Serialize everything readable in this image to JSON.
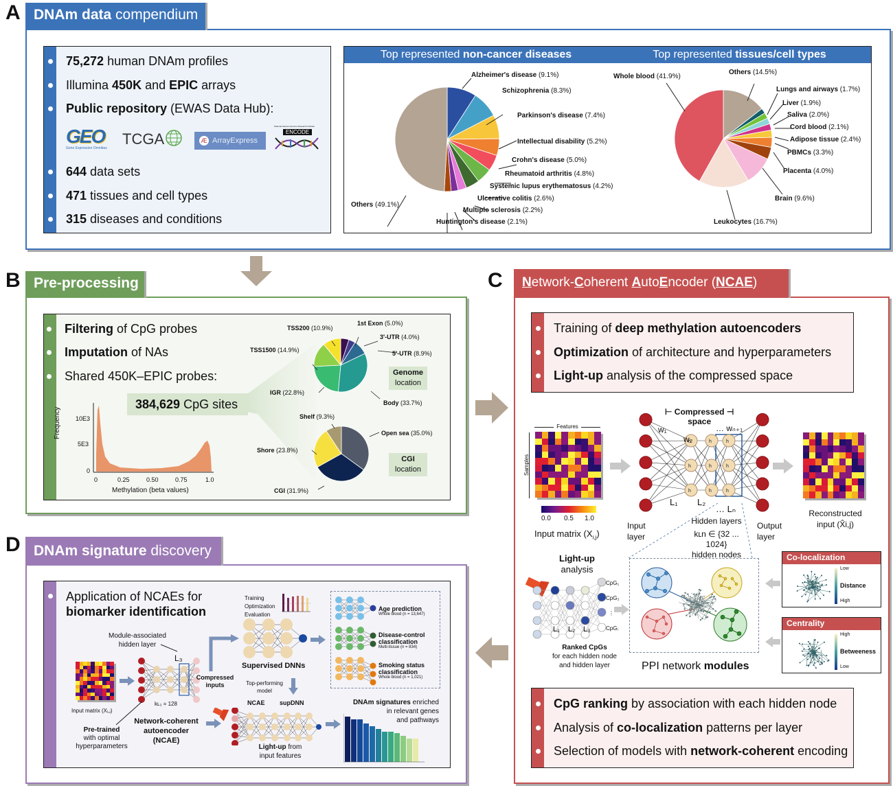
{
  "panels": {
    "A": {
      "letter": "A",
      "title_bold": "DNAm data",
      "title_rest": " compendium",
      "color": "#3b73b9",
      "bullets": [
        {
          "bold": "75,272",
          "rest": " human DNAm profiles"
        },
        {
          "pre": "Illumina ",
          "bold": "450K",
          "mid": " and ",
          "bold2": "EPIC",
          "rest": " arrays"
        },
        {
          "bold": "Public repository",
          "rest": " (EWAS Data Hub):"
        },
        {
          "bold": "644",
          "rest": " data sets"
        },
        {
          "bold": "471",
          "rest": " tissues and cell types"
        },
        {
          "bold": "315",
          "rest": " diseases and conditions"
        }
      ],
      "logos": {
        "geo": "GEO",
        "geo_sub": "Gene Expression Omnibus",
        "tcga": "TCGA",
        "arrayexpress": "ArrayExpress",
        "encode": "ENCODE",
        "encode_sub": "National Human Genome Research Institute"
      }
    },
    "B": {
      "letter": "B",
      "title": "Pre-processing",
      "color": "#6e9e5a",
      "bullets": [
        {
          "bold": "Filtering",
          "rest": " of CpG probes"
        },
        {
          "bold": "Imputation",
          "rest": " of NAs"
        },
        {
          "bold": "",
          "rest": "Shared 450K–EPIC probes:"
        }
      ],
      "cpg_count_bold": "384,629",
      "cpg_count_rest": " CpG sites",
      "genome_box": [
        "Genome",
        "location"
      ],
      "cgi_box": [
        "CGI",
        "location"
      ]
    },
    "C": {
      "letter": "C",
      "title_parts": [
        "N",
        "etwork-",
        "C",
        "oherent ",
        "A",
        "uto",
        "E",
        "ncoder (",
        "NCAE",
        ")"
      ],
      "color": "#c65050",
      "top_bullets": [
        {
          "pre": "Training of ",
          "bold": "deep methylation autoencoders",
          "rest": ""
        },
        {
          "pre": "",
          "bold": "Optimization",
          "rest": " of architecture and hyperparameters"
        },
        {
          "pre": "",
          "bold": "Light-up",
          "rest": " analysis of the compressed space"
        }
      ],
      "bottom_bullets": [
        {
          "pre": "",
          "bold": "CpG ranking",
          "rest": " by association with each hidden node"
        },
        {
          "pre": "Analysis of ",
          "bold": "co-localization",
          "rest": " patterns per layer"
        },
        {
          "pre": "Selection of models with ",
          "bold": "network-coherent",
          "rest": " encoding"
        }
      ],
      "autoencoder": {
        "features_label": "Features",
        "samples_label": "Samples",
        "colorbar_ticks": [
          "0.0",
          "0.5",
          "1.0"
        ],
        "input_matrix_label": "Input matrix (X",
        "input_matrix_sub": "i,j",
        "compressed_space": [
          "⊢ Compressed ⊣",
          "space"
        ],
        "weights": [
          "w₁",
          "w₂",
          "… wₙ₊₁"
        ],
        "layers": [
          "L₁",
          "L₂",
          "…  Lₙ"
        ],
        "input_layer": [
          "Input",
          "layer"
        ],
        "output_layer": [
          "Output",
          "layer"
        ],
        "hidden_layers": "Hidden layers",
        "hidden_nodes_range": "kʟn ∈ {32 ... 1024}",
        "hidden_nodes": "hidden nodes",
        "reconstructed": [
          "Reconstructed",
          "input (X̂i,j)"
        ]
      },
      "lightup": {
        "title_bold": "Light-up",
        "title_rest": "analysis",
        "cpgs": [
          "CpG₁",
          "CpG₂",
          "⋮",
          "CpGᵢ"
        ],
        "layers": [
          "L₁",
          "L₂",
          "L₃"
        ],
        "ranked_bold": "Ranked CpGs",
        "ranked_rest": [
          "for each hidden node",
          "and hidden layer"
        ]
      },
      "ppi_label_pre": "PPI network ",
      "ppi_label_bold": "modules",
      "colocalization": {
        "title": "Co-localization",
        "low": "Low",
        "metric": "Distance",
        "high": "High"
      },
      "centrality": {
        "title": "Centrality",
        "high": "High",
        "metric": "Betweeness",
        "low": "Low"
      }
    },
    "D": {
      "letter": "D",
      "title_bold": "DNAm signature",
      "title_rest": " discovery",
      "color": "#9b7ab5",
      "bullet_line1": "Application of NCAEs for",
      "bullet_line2": "biomarker identification",
      "module_label": [
        "Module-associated",
        "hidden layer"
      ],
      "l3": "L₃",
      "k_label": "kʟ₃ = 128",
      "input_matrix": "Input matrix (Xᵢ,ⱼ)",
      "pretrained_bold": "Pre-trained",
      "pretrained_rest": [
        "with optimal",
        "hyperparameters"
      ],
      "ncae_label": [
        "Network-coherent",
        "autoencoder",
        "(NCAE)"
      ],
      "compressed_inputs": [
        "Compressed",
        "inputs"
      ],
      "training_steps": [
        "Training",
        "Optimization",
        "Evaluation"
      ],
      "supervised": "Supervised DNNs",
      "top_performing": [
        "Top-performing",
        "model"
      ],
      "ncae_short": "NCAE",
      "supdnn": "supDNN",
      "lightup_bold": "Light-up",
      "lightup_rest": " from",
      "lightup_line2": "input features",
      "tasks": [
        {
          "title": "Age prediction",
          "sub": "Whole blood (n = 13,647)",
          "color": "#6fb8e0",
          "out": "#2b3f9a"
        },
        {
          "title": "Disease-control classification",
          "sub": "Multi-tissue (n = 834)",
          "color": "#5aa85a",
          "out": "#2f5d2f"
        },
        {
          "title": "Smoking status classification",
          "sub": "Whole blood (n = 1,021)",
          "color": "#f0b860",
          "out": "#e07a10"
        }
      ],
      "signatures_bold": "DNAm signatures",
      "signatures_rest": [
        " enriched",
        "in relevant genes",
        "and pathways"
      ]
    }
  },
  "chart_data": [
    {
      "type": "pie",
      "title": "Top represented non-cancer diseases",
      "categories": [
        "Alzheimer's disease",
        "Schizophrenia",
        "Parkinson's disease",
        "Intellectual disability",
        "Crohn's disease",
        "Rheumatoid arthritis",
        "Systemic lupus erythematosus",
        "Ulcerative colitis",
        "Multiple sclerosis",
        "Huntington's disease",
        "Others"
      ],
      "values": [
        9.1,
        8.3,
        7.4,
        5.2,
        5.0,
        4.8,
        4.2,
        2.6,
        2.2,
        2.1,
        49.1
      ],
      "colors": [
        "#2b4fa0",
        "#45a0c8",
        "#f8c63a",
        "#ee8030",
        "#f24d5c",
        "#6db648",
        "#3d6a2e",
        "#e57ad8",
        "#7c2f9a",
        "#a8480e",
        "#b4a494"
      ]
    },
    {
      "type": "pie",
      "title": "Top represented tissues/cell types",
      "categories": [
        "Others",
        "Lungs and airways",
        "Liver",
        "Saliva",
        "Cord blood",
        "Adipose tissue",
        "PBMCs",
        "Placenta",
        "Brain",
        "Leukocytes",
        "Whole blood"
      ],
      "values": [
        14.5,
        1.7,
        1.9,
        2.0,
        2.1,
        2.4,
        3.3,
        4.0,
        9.6,
        16.7,
        41.9
      ],
      "colors": [
        "#b4a494",
        "#125e6a",
        "#74c43a",
        "#8ed6d8",
        "#d0348a",
        "#f8c83a",
        "#ee8030",
        "#a0420e",
        "#f6b8d8",
        "#f6e0d6",
        "#de5560"
      ]
    },
    {
      "type": "histogram",
      "title": "",
      "xlabel": "Methylation (beta values)",
      "ylabel": "Frequency",
      "xticks": [
        "0",
        "0.25",
        "0.50",
        "0.75",
        "1.0"
      ],
      "yticks": [
        "0",
        "5E3",
        "10E3"
      ],
      "xlim": [
        0,
        1
      ],
      "ylim": [
        0,
        13000
      ],
      "x": [
        0.01,
        0.02,
        0.03,
        0.05,
        0.08,
        0.12,
        0.2,
        0.3,
        0.4,
        0.5,
        0.6,
        0.7,
        0.8,
        0.85,
        0.9,
        0.93,
        0.95,
        0.97,
        0.99
      ],
      "values": [
        3000,
        12800,
        10500,
        6000,
        3000,
        1600,
        900,
        600,
        500,
        500,
        600,
        900,
        1600,
        2400,
        3800,
        5200,
        5500,
        4000,
        400
      ],
      "color": "#e8956a"
    },
    {
      "type": "pie",
      "title": "Genome location",
      "categories": [
        "1st Exon",
        "3'-UTR",
        "5'-UTR",
        "Body",
        "IGR",
        "TSS1500",
        "TSS200"
      ],
      "values": [
        5.0,
        4.0,
        8.9,
        33.7,
        22.8,
        14.9,
        10.9
      ],
      "colors": [
        "#3a0e4f",
        "#3e3c8a",
        "#2d6a92",
        "#249a90",
        "#3abb72",
        "#8ed048",
        "#f6e12a"
      ]
    },
    {
      "type": "pie",
      "title": "CGI location",
      "categories": [
        "Open sea",
        "CGI",
        "Shore",
        "Shelf"
      ],
      "values": [
        35.0,
        31.9,
        23.8,
        9.3
      ],
      "colors": [
        "#525a6a",
        "#0e2450",
        "#f6e040",
        "#a89a70"
      ]
    }
  ]
}
